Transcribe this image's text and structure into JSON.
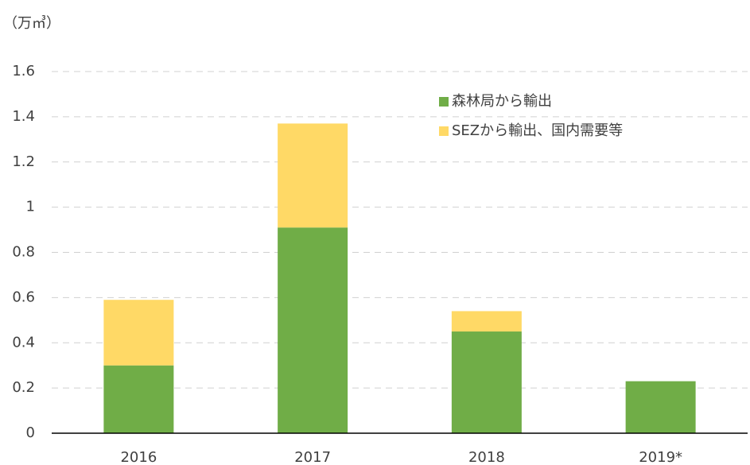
{
  "chart_data": {
    "type": "stacked_bar",
    "unit_label": "（万㎥）",
    "categories": [
      "2016",
      "2017",
      "2018",
      "2019*"
    ],
    "series": [
      {
        "name": "森林局から輸出",
        "color": "#70ad47",
        "values": [
          0.3,
          0.91,
          0.45,
          0.23
        ]
      },
      {
        "name": "SEZから輸出、国内需要等",
        "color": "#ffd966",
        "values": [
          0.29,
          0.46,
          0.09,
          0
        ]
      }
    ],
    "ylim": [
      0,
      1.6
    ],
    "yticks": [
      0,
      0.2,
      0.4,
      0.6,
      0.8,
      1,
      1.2,
      1.4,
      1.6
    ],
    "grid": true
  }
}
